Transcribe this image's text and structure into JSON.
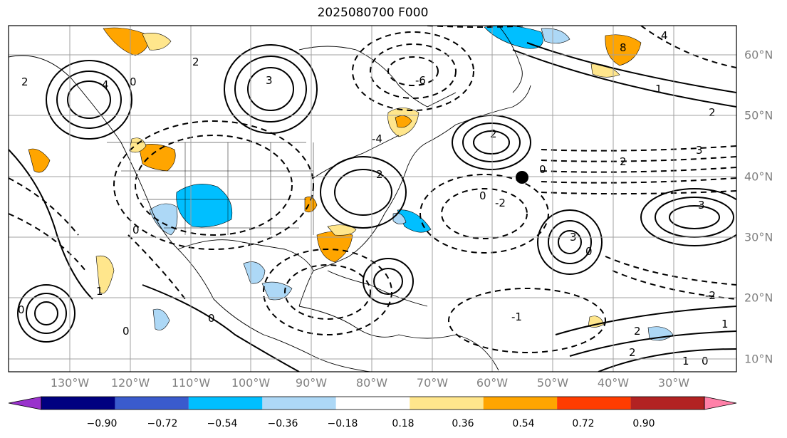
{
  "title": "2025080700 F000",
  "lon_labels": [
    "130°W",
    "120°W",
    "110°W",
    "100°W",
    "90°W",
    "80°W",
    "70°W",
    "60°W",
    "50°W",
    "40°W",
    "30°W"
  ],
  "lat_labels": [
    "60°N",
    "50°N",
    "40°N",
    "30°N",
    "20°N",
    "10°N"
  ],
  "colorbar": {
    "ticks": [
      "−0.90",
      "−0.72",
      "−0.54",
      "−0.36",
      "−0.18",
      "0.18",
      "0.36",
      "0.54",
      "0.72",
      "0.90"
    ],
    "colors": [
      "#9932cc",
      "#000080",
      "#3a5bcd",
      "#00bfff",
      "#add8f6",
      "#ffffff",
      "#ffe68c",
      "#ffa500",
      "#ff3c00",
      "#b22222",
      "#ff80a8"
    ]
  },
  "colors": {
    "contour": "#000000",
    "graticule": "#a0a0a0",
    "marker": "#000000"
  },
  "marker": {
    "label": "point-marker"
  }
}
